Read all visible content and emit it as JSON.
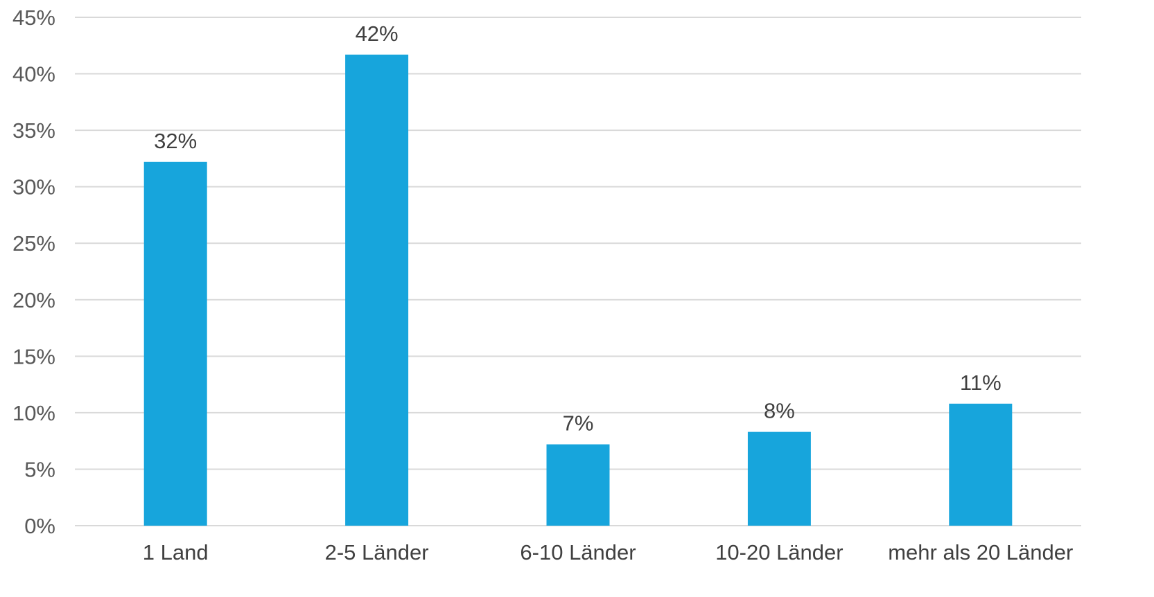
{
  "chart_data": {
    "type": "bar",
    "categories": [
      "1 Land",
      "2-5 Länder",
      "6-10 Länder",
      "10-20 Länder",
      "mehr als 20 Länder"
    ],
    "values": [
      32.2,
      41.7,
      7.2,
      8.3,
      10.8
    ],
    "data_labels": [
      "32%",
      "42%",
      "7%",
      "8%",
      "11%"
    ],
    "ylim": [
      0,
      45
    ],
    "yticks": [
      0,
      5,
      10,
      15,
      20,
      25,
      30,
      35,
      40,
      45
    ],
    "ytick_labels": [
      "0%",
      "5%",
      "10%",
      "15%",
      "20%",
      "25%",
      "30%",
      "35%",
      "40%",
      "45%"
    ],
    "grid": true,
    "legend": "none",
    "bar_color": "#17a5dc"
  }
}
